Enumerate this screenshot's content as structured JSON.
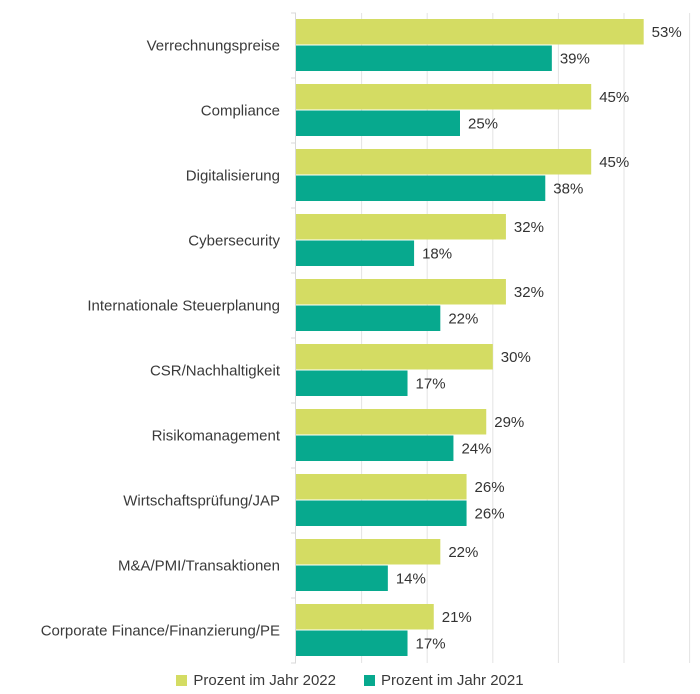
{
  "chart_data": {
    "type": "bar",
    "orientation": "horizontal",
    "title": "",
    "xlabel": "",
    "ylabel": "",
    "xlim": [
      0,
      60
    ],
    "grid": true,
    "legend_position": "bottom-center",
    "value_suffix": "%",
    "categories": [
      "Verrechnungspreise",
      "Compliance",
      "Digitalisierung",
      "Cybersecurity",
      "Internationale Steuerplanung",
      "CSR/Nachhaltigkeit",
      "Risikomanagement",
      "Wirtschaftsprüfung/JAP",
      "M&A/PMI/Transaktionen",
      "Corporate Finance/Finanzierung/PE"
    ],
    "series": [
      {
        "name": "Prozent im Jahr 2022",
        "color": "#d4dc63",
        "values": [
          53,
          45,
          45,
          32,
          32,
          30,
          29,
          26,
          22,
          21
        ]
      },
      {
        "name": "Prozent im Jahr 2021",
        "color": "#07a98e",
        "values": [
          39,
          25,
          38,
          18,
          22,
          17,
          24,
          26,
          14,
          17
        ]
      }
    ]
  }
}
